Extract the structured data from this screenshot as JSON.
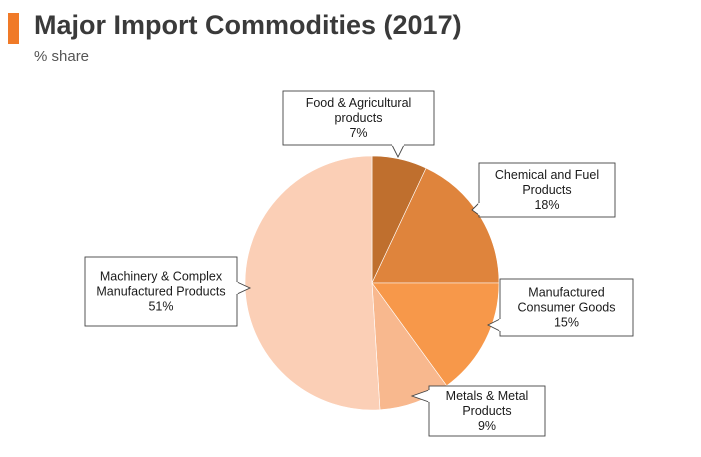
{
  "chart_data": {
    "type": "pie",
    "title": "Major Import Commodities (2017)",
    "subtitle": "% share",
    "slices": [
      {
        "label": "Food & Agricultural products",
        "lines": [
          "Food & Agricultural",
          "products",
          "7%"
        ],
        "value": 7,
        "color": "#bf6f2e"
      },
      {
        "label": "Chemical and Fuel Products",
        "lines": [
          "Chemical and Fuel",
          "Products",
          "18%"
        ],
        "value": 18,
        "color": "#df843c"
      },
      {
        "label": "Manufactured Consumer Goods",
        "lines": [
          "Manufactured",
          "Consumer Goods",
          "15%"
        ],
        "value": 15,
        "color": "#f7984a"
      },
      {
        "label": "Metals & Metal Products",
        "lines": [
          "Metals & Metal",
          "Products",
          "9%"
        ],
        "value": 9,
        "color": "#f8b88e"
      },
      {
        "label": "Machinery & Complex Manufactured Products",
        "lines": [
          "Machinery & Complex",
          "Manufactured Products",
          "51%"
        ],
        "value": 51,
        "color": "#fbcfb6"
      }
    ]
  },
  "colors": {
    "accent": "#f07a28"
  }
}
